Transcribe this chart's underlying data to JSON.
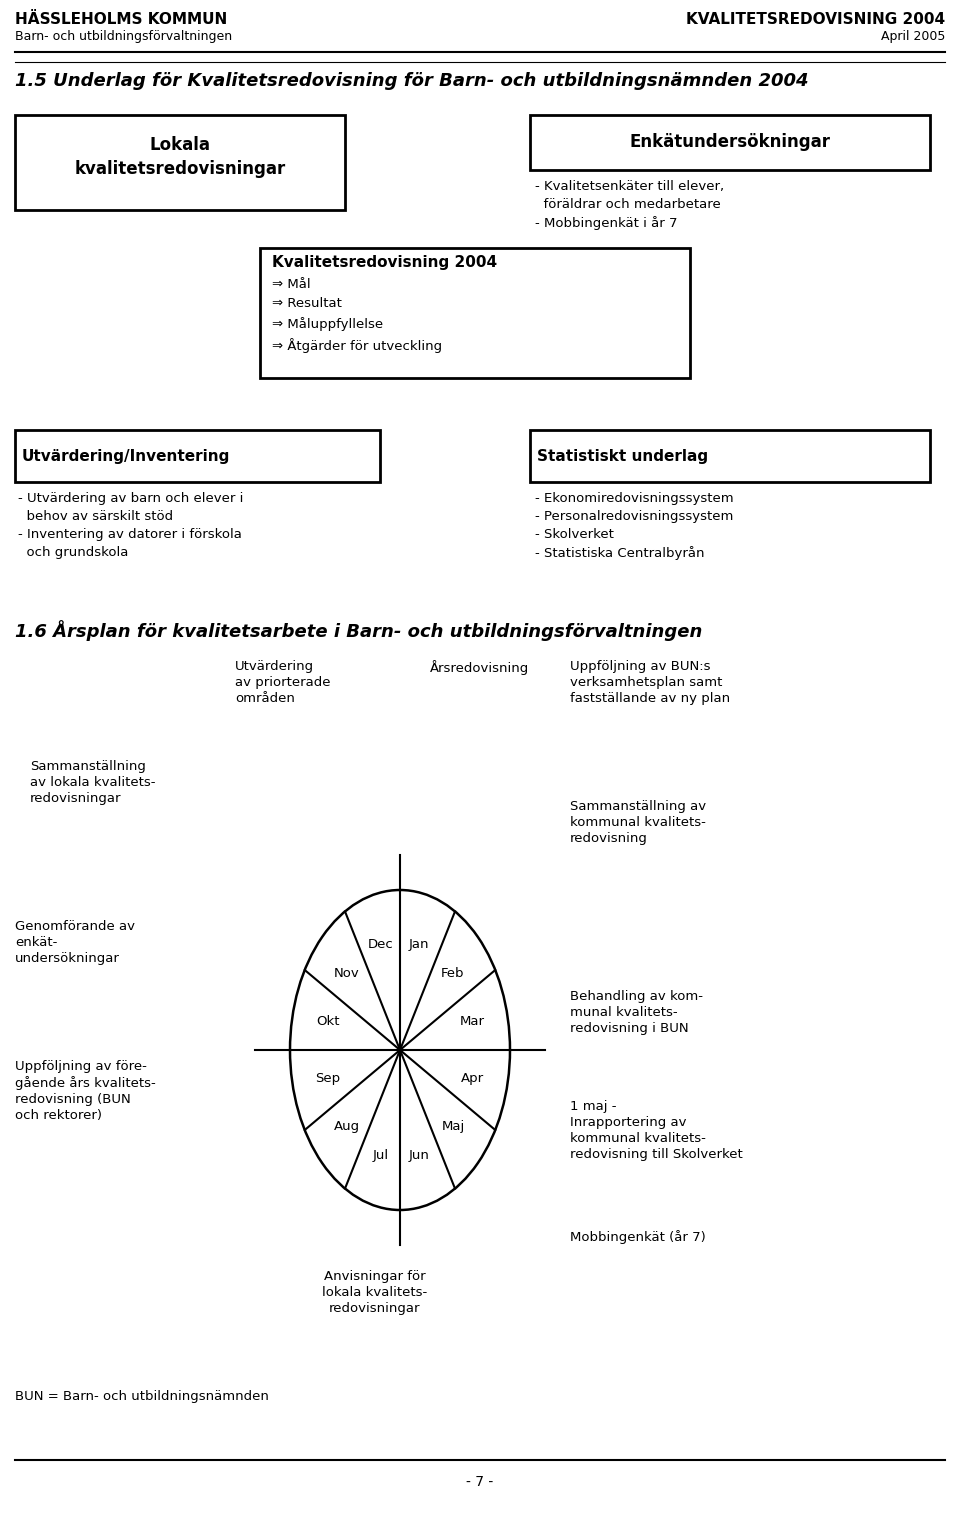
{
  "header_left_line1": "HÄSSLEHOLMS KOMMUN",
  "header_left_line2": "Barn- och utbildningsförvaltningen",
  "header_right_line1": "KVALITETSREDOVISNING 2004",
  "header_right_line2": "April 2005",
  "section1_title": "1.5 Underlag för Kvalitetsredovisning för Barn- och utbildningsnämnden 2004",
  "box1_title": "Lokala\nkvalitetsredovisningar",
  "box2_title": "Enkätundersökningar",
  "box2_text": "- Kvalitetsenkäter till elever,\n  föräldrar och medarbetare\n- Mobbingenkät i år 7",
  "box3_title": "Kvalitetsredovisning 2004",
  "box3_text": "⇒ Mål\n⇒ Resultat\n⇒ Måluppfyllelse\n⇒ Åtgärder för utveckling",
  "box4_title": "Utvärdering/Inventering",
  "box4_text": "- Utvärdering av barn och elever i\n  behov av särskilt stöd\n- Inventering av datorer i förskola\n  och grundskola",
  "box5_title": "Statistiskt underlag",
  "box5_text": "- Ekonomiredovisningssystem\n- Personalredovisningssystem\n- Skolverket\n- Statistiska Centralbyrån",
  "section2_title": "1.6 Årsplan för kvalitetsarbete i Barn- och utbildningsförvaltningen",
  "footer_text": "- 7 -",
  "bg_color": "#ffffff",
  "text_color": "#000000"
}
